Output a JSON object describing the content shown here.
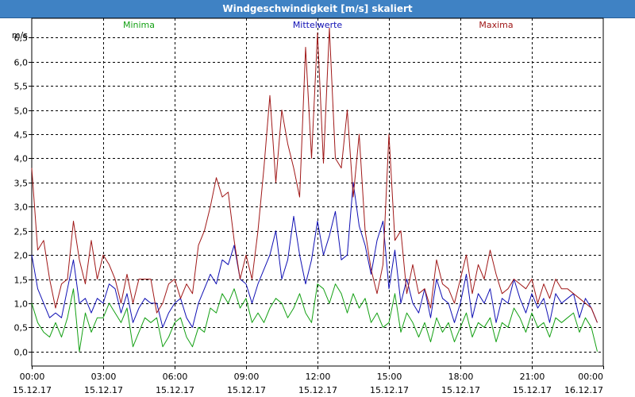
{
  "window": {
    "title": "Windgeschwindigkeit [m/s] skaliert"
  },
  "chart_data": {
    "type": "line",
    "title": "Windgeschwindigkeit [m/s] skaliert",
    "ylabel": "m/s",
    "xlabel": "",
    "ylim": [
      -0.3,
      6.9
    ],
    "yticks": [
      0,
      0.5,
      1,
      1.5,
      2,
      2.5,
      3,
      3.5,
      4,
      4.5,
      5,
      5.5,
      6,
      6.5
    ],
    "ytick_labels": [
      "0,0",
      "0,5",
      "1,0",
      "1,5",
      "2,0",
      "2,5",
      "3,0",
      "3,5",
      "4,0",
      "4,5",
      "5,0",
      "5,5",
      "6,0",
      "6,5"
    ],
    "xlim": [
      0,
      24
    ],
    "xticks": [
      {
        "pos": 0,
        "time": "00:00",
        "date": "15.12.17"
      },
      {
        "pos": 3,
        "time": "03:00",
        "date": "15.12.17"
      },
      {
        "pos": 6,
        "time": "06:00",
        "date": "15.12.17"
      },
      {
        "pos": 9,
        "time": "09:00",
        "date": "15.12.17"
      },
      {
        "pos": 12,
        "time": "12:00",
        "date": "15.12.17"
      },
      {
        "pos": 15,
        "time": "15:00",
        "date": "15.12.17"
      },
      {
        "pos": 18,
        "time": "18:00",
        "date": "15.12.17"
      },
      {
        "pos": 21,
        "time": "21:00",
        "date": "15.12.17"
      },
      {
        "pos": 24,
        "time": "00:00",
        "date": "16.12.17"
      }
    ],
    "grid": true,
    "legend_placement": "top",
    "series": [
      {
        "name": "Minima",
        "color": "#14a014",
        "x": [
          0,
          0.25,
          0.5,
          0.75,
          1,
          1.25,
          1.5,
          1.75,
          2,
          2.25,
          2.5,
          2.75,
          3,
          3.25,
          3.5,
          3.75,
          4,
          4.25,
          4.5,
          4.75,
          5,
          5.25,
          5.5,
          5.75,
          6,
          6.25,
          6.5,
          6.75,
          7,
          7.25,
          7.5,
          7.75,
          8,
          8.25,
          8.5,
          8.75,
          9,
          9.25,
          9.5,
          9.75,
          10,
          10.25,
          10.5,
          10.75,
          11,
          11.25,
          11.5,
          11.75,
          12,
          12.25,
          12.5,
          12.75,
          13,
          13.25,
          13.5,
          13.75,
          14,
          14.25,
          14.5,
          14.75,
          15,
          15.25,
          15.5,
          15.75,
          16,
          16.25,
          16.5,
          16.75,
          17,
          17.25,
          17.5,
          17.75,
          18,
          18.25,
          18.5,
          18.75,
          19,
          19.25,
          19.5,
          19.75,
          20,
          20.25,
          20.5,
          20.75,
          21,
          21.25,
          21.5,
          21.75,
          22,
          22.25,
          22.5,
          22.75,
          23,
          23.25,
          23.5,
          23.75
        ],
        "values": [
          1.0,
          0.6,
          0.4,
          0.3,
          0.6,
          0.3,
          0.7,
          1.3,
          0.0,
          0.8,
          0.4,
          0.7,
          0.7,
          1.0,
          0.8,
          0.6,
          0.9,
          0.1,
          0.4,
          0.7,
          0.6,
          0.7,
          0.1,
          0.3,
          0.6,
          0.7,
          0.3,
          0.1,
          0.5,
          0.4,
          0.9,
          0.8,
          1.2,
          1.0,
          1.3,
          0.9,
          1.1,
          0.6,
          0.8,
          0.6,
          0.9,
          1.1,
          1.0,
          0.7,
          0.9,
          1.2,
          0.8,
          0.6,
          1.4,
          1.3,
          1.0,
          1.4,
          1.2,
          0.8,
          1.2,
          0.9,
          1.1,
          0.6,
          0.8,
          0.5,
          0.6,
          1.2,
          0.4,
          0.8,
          0.6,
          0.3,
          0.6,
          0.2,
          0.7,
          0.4,
          0.6,
          0.2,
          0.5,
          0.8,
          0.3,
          0.6,
          0.5,
          0.7,
          0.2,
          0.6,
          0.5,
          0.9,
          0.7,
          0.4,
          0.8,
          0.5,
          0.6,
          0.3,
          0.7,
          0.6,
          0.7,
          0.8,
          0.4,
          0.7,
          0.5,
          0.0
        ],
        "label_x": 4.5
      },
      {
        "name": "Mittelwerte",
        "color": "#1010b4",
        "x": [
          0,
          0.25,
          0.5,
          0.75,
          1,
          1.25,
          1.5,
          1.75,
          2,
          2.25,
          2.5,
          2.75,
          3,
          3.25,
          3.5,
          3.75,
          4,
          4.25,
          4.5,
          4.75,
          5,
          5.25,
          5.5,
          5.75,
          6,
          6.25,
          6.5,
          6.75,
          7,
          7.25,
          7.5,
          7.75,
          8,
          8.25,
          8.5,
          8.75,
          9,
          9.25,
          9.5,
          9.75,
          10,
          10.25,
          10.5,
          10.75,
          11,
          11.25,
          11.5,
          11.75,
          12,
          12.25,
          12.5,
          12.75,
          13,
          13.25,
          13.5,
          13.75,
          14,
          14.25,
          14.5,
          14.75,
          15,
          15.25,
          15.5,
          15.75,
          16,
          16.25,
          16.5,
          16.75,
          17,
          17.25,
          17.5,
          17.75,
          18,
          18.25,
          18.5,
          18.75,
          19,
          19.25,
          19.5,
          19.75,
          20,
          20.25,
          20.5,
          20.75,
          21,
          21.25,
          21.5,
          21.75,
          22,
          22.25,
          22.5,
          22.75,
          23,
          23.25,
          23.5,
          23.75
        ],
        "values": [
          2.0,
          1.3,
          1.0,
          0.7,
          0.8,
          0.7,
          1.3,
          1.9,
          1.0,
          1.1,
          0.8,
          1.1,
          1.0,
          1.4,
          1.3,
          0.8,
          1.2,
          0.6,
          0.9,
          1.1,
          1.0,
          1.0,
          0.5,
          0.8,
          1.0,
          1.1,
          0.7,
          0.5,
          1.0,
          1.3,
          1.6,
          1.4,
          1.9,
          1.8,
          2.2,
          1.5,
          1.4,
          1.0,
          1.4,
          1.7,
          2.0,
          2.5,
          1.5,
          1.9,
          2.8,
          2.0,
          1.4,
          1.9,
          2.7,
          2.0,
          2.4,
          2.9,
          1.9,
          2.0,
          3.5,
          2.6,
          2.2,
          1.6,
          2.3,
          2.7,
          1.3,
          2.1,
          1.0,
          1.5,
          1.0,
          0.8,
          1.3,
          0.7,
          1.5,
          1.1,
          1.0,
          0.6,
          1.0,
          1.6,
          0.7,
          1.2,
          1.0,
          1.3,
          0.6,
          1.1,
          1.0,
          1.5,
          1.1,
          0.8,
          1.2,
          0.9,
          1.1,
          0.6,
          1.2,
          1.0,
          1.1,
          1.2,
          0.7,
          1.1,
          0.9,
          0.6
        ],
        "label_x": 12
      },
      {
        "name": "Maxima",
        "color": "#a01818",
        "x": [
          0,
          0.25,
          0.5,
          0.75,
          1,
          1.25,
          1.5,
          1.75,
          2,
          2.25,
          2.5,
          2.75,
          3,
          3.25,
          3.5,
          3.75,
          4,
          4.25,
          4.5,
          4.75,
          5,
          5.25,
          5.5,
          5.75,
          6,
          6.25,
          6.5,
          6.75,
          7,
          7.25,
          7.5,
          7.75,
          8,
          8.25,
          8.5,
          8.75,
          9,
          9.25,
          9.5,
          9.75,
          10,
          10.25,
          10.5,
          10.75,
          11,
          11.25,
          11.5,
          11.75,
          12,
          12.25,
          12.5,
          12.75,
          13,
          13.25,
          13.5,
          13.75,
          14,
          14.25,
          14.5,
          14.75,
          15,
          15.25,
          15.5,
          15.75,
          16,
          16.25,
          16.5,
          16.75,
          17,
          17.25,
          17.5,
          17.75,
          18,
          18.25,
          18.5,
          18.75,
          19,
          19.25,
          19.5,
          19.75,
          20,
          20.25,
          20.5,
          20.75,
          21,
          21.25,
          21.5,
          21.75,
          22,
          22.25,
          22.5,
          22.75,
          23,
          23.25,
          23.5,
          23.75
        ],
        "values": [
          3.8,
          2.1,
          2.3,
          1.5,
          0.9,
          1.4,
          1.5,
          2.7,
          1.9,
          1.4,
          2.3,
          1.5,
          2.0,
          1.8,
          1.5,
          1.0,
          1.6,
          1.0,
          1.5,
          1.5,
          1.5,
          0.8,
          1.0,
          1.4,
          1.5,
          1.1,
          1.4,
          1.2,
          2.2,
          2.5,
          3.0,
          3.6,
          3.2,
          3.3,
          2.3,
          1.5,
          2.0,
          1.5,
          2.5,
          3.8,
          5.3,
          3.5,
          5.0,
          4.3,
          3.8,
          3.2,
          6.3,
          4.0,
          6.6,
          3.9,
          6.7,
          4.0,
          3.8,
          5.0,
          3.2,
          4.5,
          2.5,
          1.7,
          1.2,
          1.8,
          4.5,
          2.3,
          2.5,
          1.2,
          1.8,
          1.2,
          1.3,
          0.9,
          1.9,
          1.4,
          1.3,
          1.0,
          1.5,
          2.0,
          1.2,
          1.8,
          1.5,
          2.1,
          1.6,
          1.2,
          1.3,
          1.5,
          1.4,
          1.3,
          1.5,
          1.0,
          1.4,
          1.1,
          1.5,
          1.3,
          1.3,
          1.2,
          1.1,
          1.0,
          0.9,
          0.6
        ],
        "label_x": 19.5
      }
    ]
  }
}
